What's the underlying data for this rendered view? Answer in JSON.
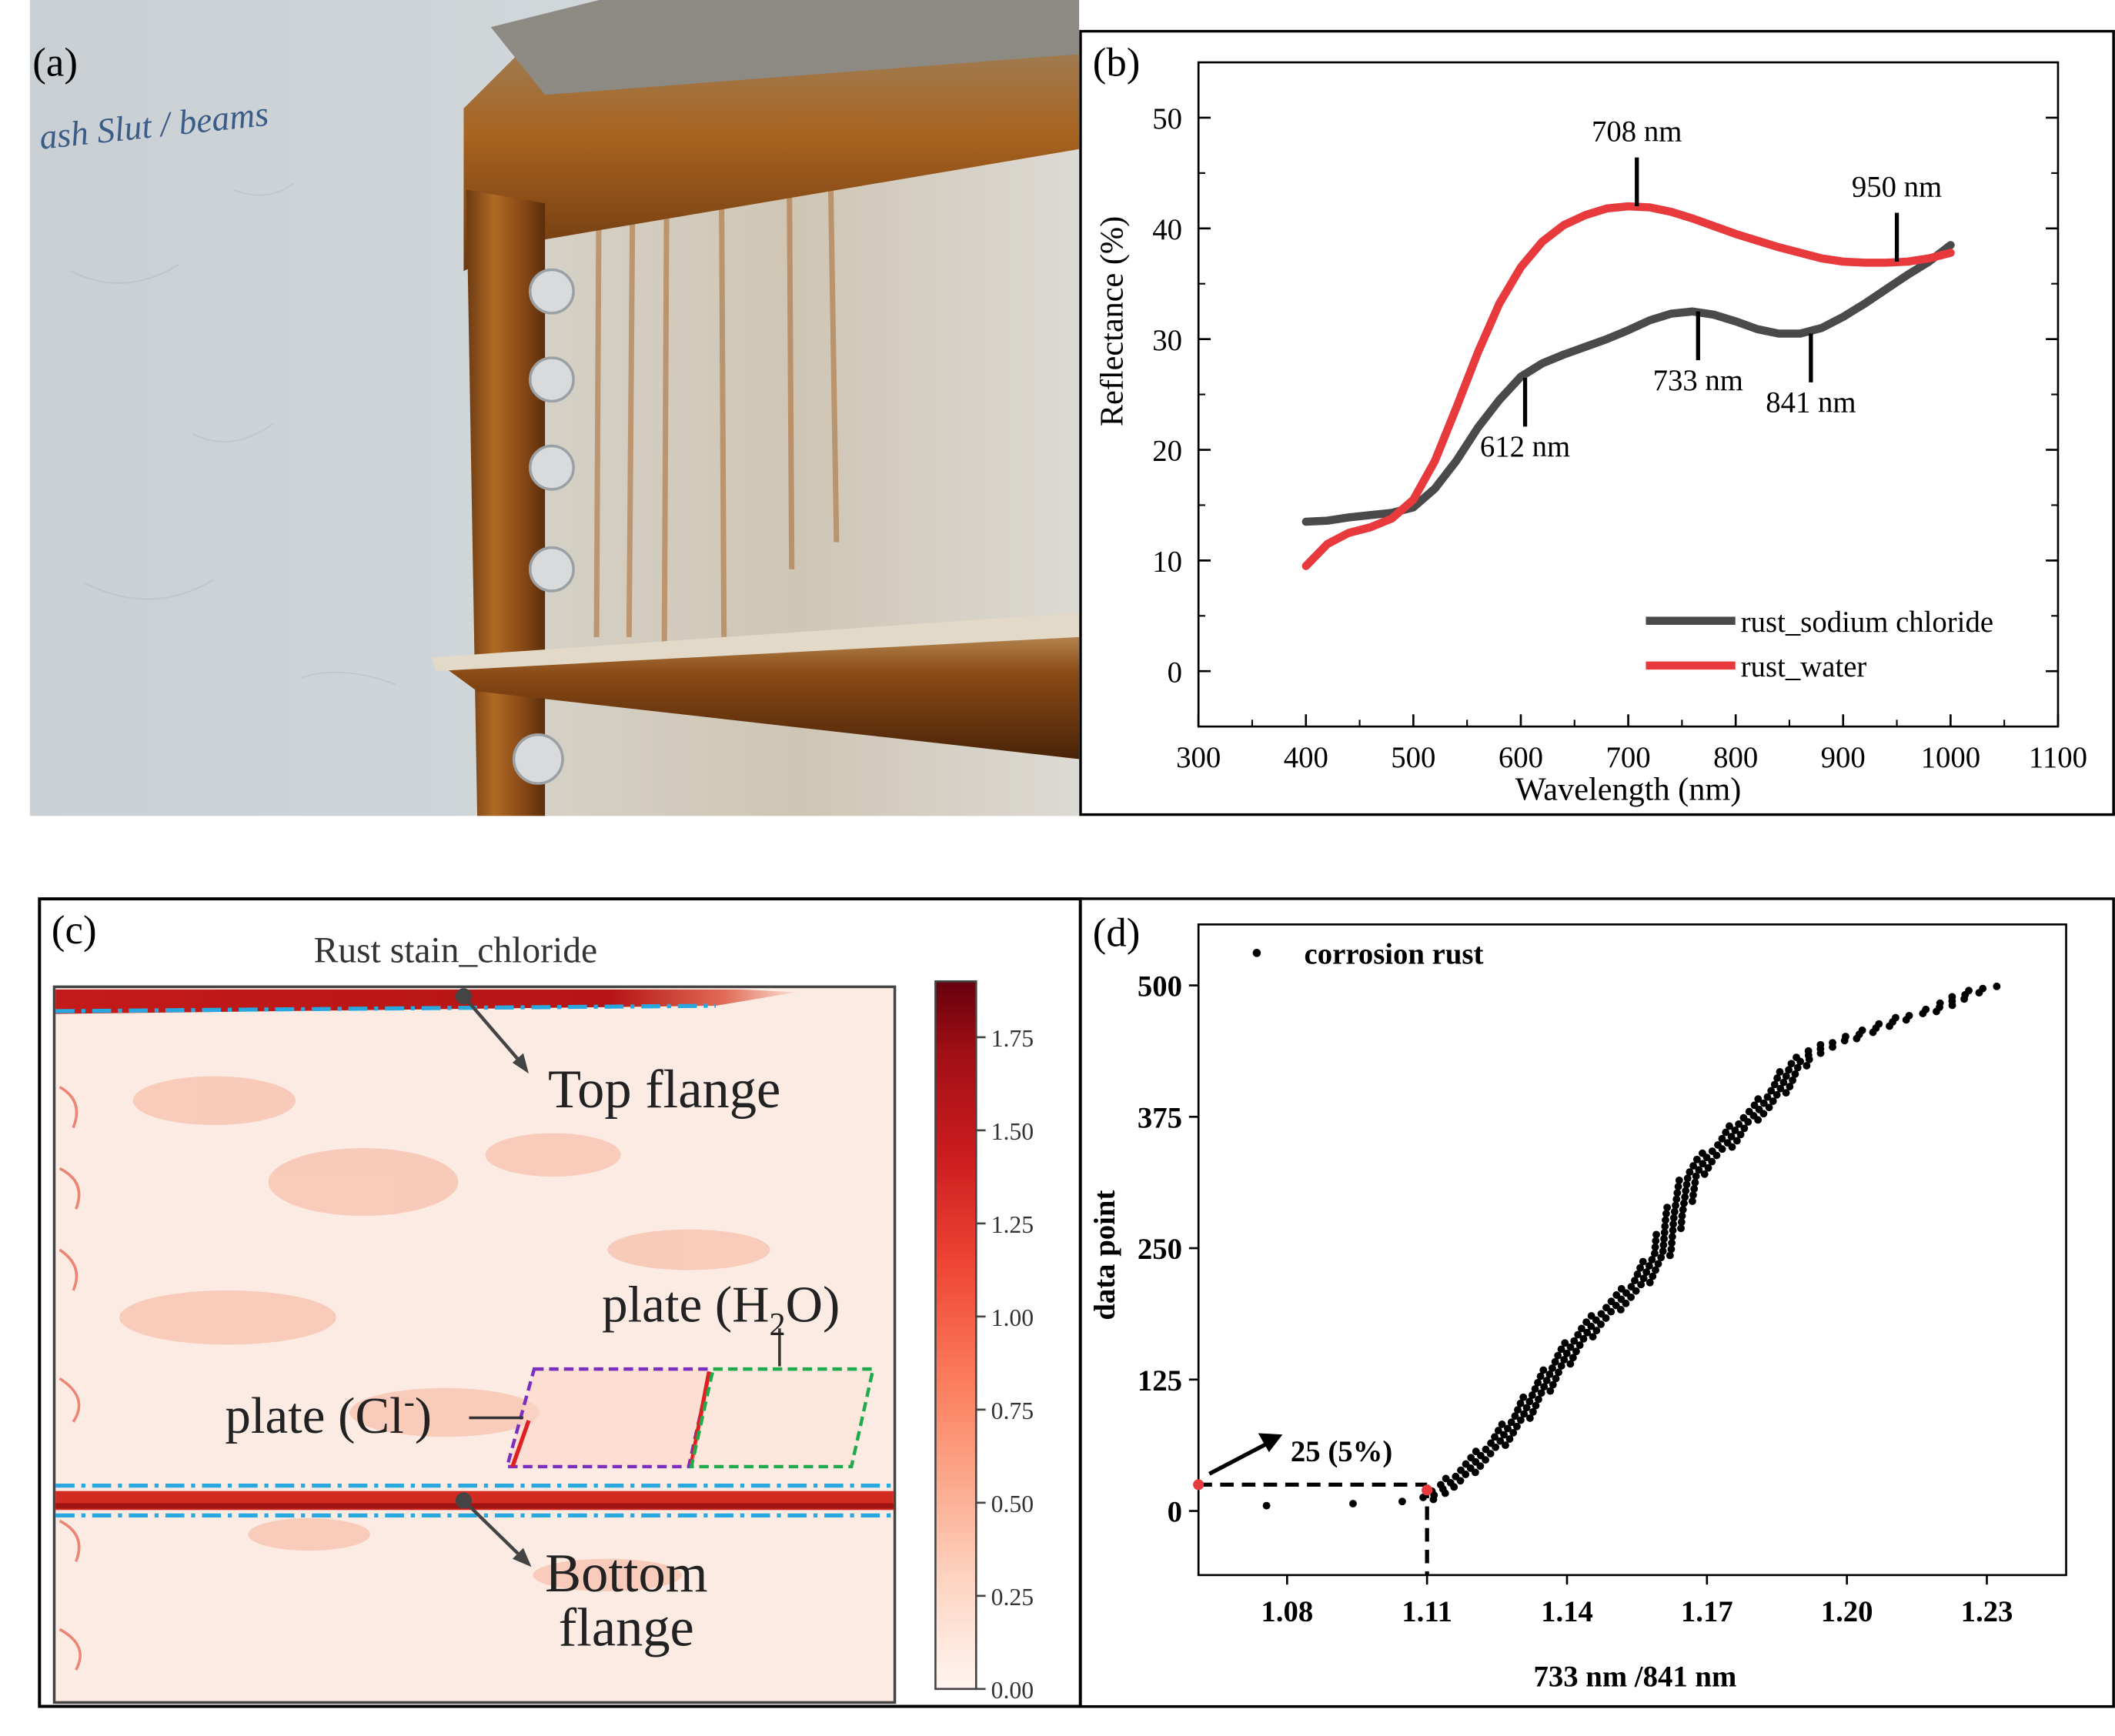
{
  "panels": {
    "a": "(a)",
    "b": "(b)",
    "c": "(c)",
    "d": "(d)"
  },
  "photo": {
    "handwriting": "ash Slut / beams"
  },
  "colors": {
    "sodium": "#4a4a4a",
    "water": "#e8393c",
    "rust": "#a85a1c",
    "cyan": "#29a8e0",
    "purple": "#7b2fbe",
    "green": "#1faa4c",
    "heat_dark": "#67000d",
    "heat_light": "#fff5f0"
  },
  "chart_data": [
    {
      "id": "b",
      "type": "line",
      "title": "",
      "xlabel": "Wavelength (nm)",
      "ylabel": "Reflectance (%)",
      "xlim": [
        300,
        1100
      ],
      "ylim": [
        -5,
        55
      ],
      "xticks": [
        300,
        400,
        500,
        600,
        700,
        800,
        900,
        1000,
        1100
      ],
      "yticks": [
        0,
        10,
        20,
        30,
        40,
        50
      ],
      "legend_position": "bottom-right",
      "series": [
        {
          "name": "rust_sodium chloride",
          "color": "#4a4a4a",
          "x": [
            400,
            420,
            440,
            460,
            480,
            500,
            520,
            540,
            560,
            580,
            600,
            620,
            640,
            660,
            680,
            700,
            720,
            740,
            760,
            780,
            800,
            820,
            840,
            860,
            880,
            900,
            920,
            940,
            960,
            980,
            1000
          ],
          "y": [
            13.5,
            13.6,
            13.9,
            14.1,
            14.3,
            14.8,
            16.5,
            19,
            22,
            24.5,
            26.6,
            27.8,
            28.6,
            29.3,
            30,
            30.8,
            31.7,
            32.3,
            32.5,
            32.2,
            31.6,
            30.9,
            30.5,
            30.5,
            31,
            32,
            33.2,
            34.5,
            35.8,
            37,
            38.5
          ]
        },
        {
          "name": "rust_water",
          "color": "#e8393c",
          "x": [
            400,
            420,
            440,
            460,
            480,
            500,
            520,
            540,
            560,
            580,
            600,
            620,
            640,
            660,
            680,
            700,
            720,
            740,
            760,
            780,
            800,
            820,
            840,
            860,
            880,
            900,
            920,
            940,
            960,
            980,
            1000
          ],
          "y": [
            9.5,
            11.5,
            12.5,
            13,
            13.8,
            15.5,
            19,
            23.8,
            28.8,
            33.2,
            36.5,
            38.8,
            40.3,
            41.2,
            41.8,
            42,
            41.9,
            41.5,
            40.9,
            40.2,
            39.5,
            38.9,
            38.3,
            37.8,
            37.3,
            37,
            36.9,
            36.9,
            37,
            37.3,
            37.8
          ]
        }
      ],
      "annotations": [
        {
          "label": "708 nm",
          "x": 708,
          "y": 42
        },
        {
          "label": "950 nm",
          "x": 950,
          "y": 37
        },
        {
          "label": "733 nm",
          "x": 765,
          "y": 32.5
        },
        {
          "label": "841 nm",
          "x": 870,
          "y": 30.5
        },
        {
          "label": "612 nm",
          "x": 604,
          "y": 26.5
        }
      ]
    },
    {
      "id": "c",
      "type": "heatmap",
      "title": "Rust stain_chloride",
      "colorbar_ticks": [
        "0.00",
        "0.25",
        "0.50",
        "0.75",
        "1.00",
        "1.25",
        "1.50",
        "1.75"
      ],
      "colorbar_range": [
        0,
        1.9
      ],
      "annotations": [
        "Top flange",
        "Bottom",
        "flange",
        "plate (Cl",
        "-",
        ")",
        "plate (H",
        "2",
        "O)"
      ]
    },
    {
      "id": "d",
      "type": "scatter",
      "legend": "corrosion rust",
      "xlabel": "733 nm /841 nm",
      "ylabel": "data point",
      "xlim": [
        1.061,
        1.247
      ],
      "ylim": [
        -61,
        558
      ],
      "xticks": [
        "1.08",
        "1.11",
        "1.14",
        "1.17",
        "1.20",
        "1.23"
      ],
      "yticks": [
        "0",
        "125",
        "250",
        "375",
        "500"
      ],
      "threshold": {
        "x": 1.11,
        "y": 25,
        "label": "25 (5%)"
      },
      "curve": {
        "x": [
          1.078,
          1.09,
          1.1,
          1.108,
          1.11,
          1.115,
          1.12,
          1.125,
          1.13,
          1.135,
          1.14,
          1.145,
          1.15,
          1.155,
          1.16,
          1.163,
          1.167,
          1.17,
          1.174,
          1.178,
          1.182,
          1.186,
          1.19,
          1.195,
          1.2,
          1.21,
          1.22,
          1.225,
          1.232
        ],
        "y": [
          5,
          6,
          8,
          10,
          12,
          25,
          45,
          65,
          90,
          120,
          150,
          175,
          195,
          215,
          245,
          280,
          320,
          335,
          350,
          370,
          385,
          405,
          430,
          440,
          450,
          465,
          480,
          490,
          500
        ]
      },
      "point_count": 500
    }
  ]
}
